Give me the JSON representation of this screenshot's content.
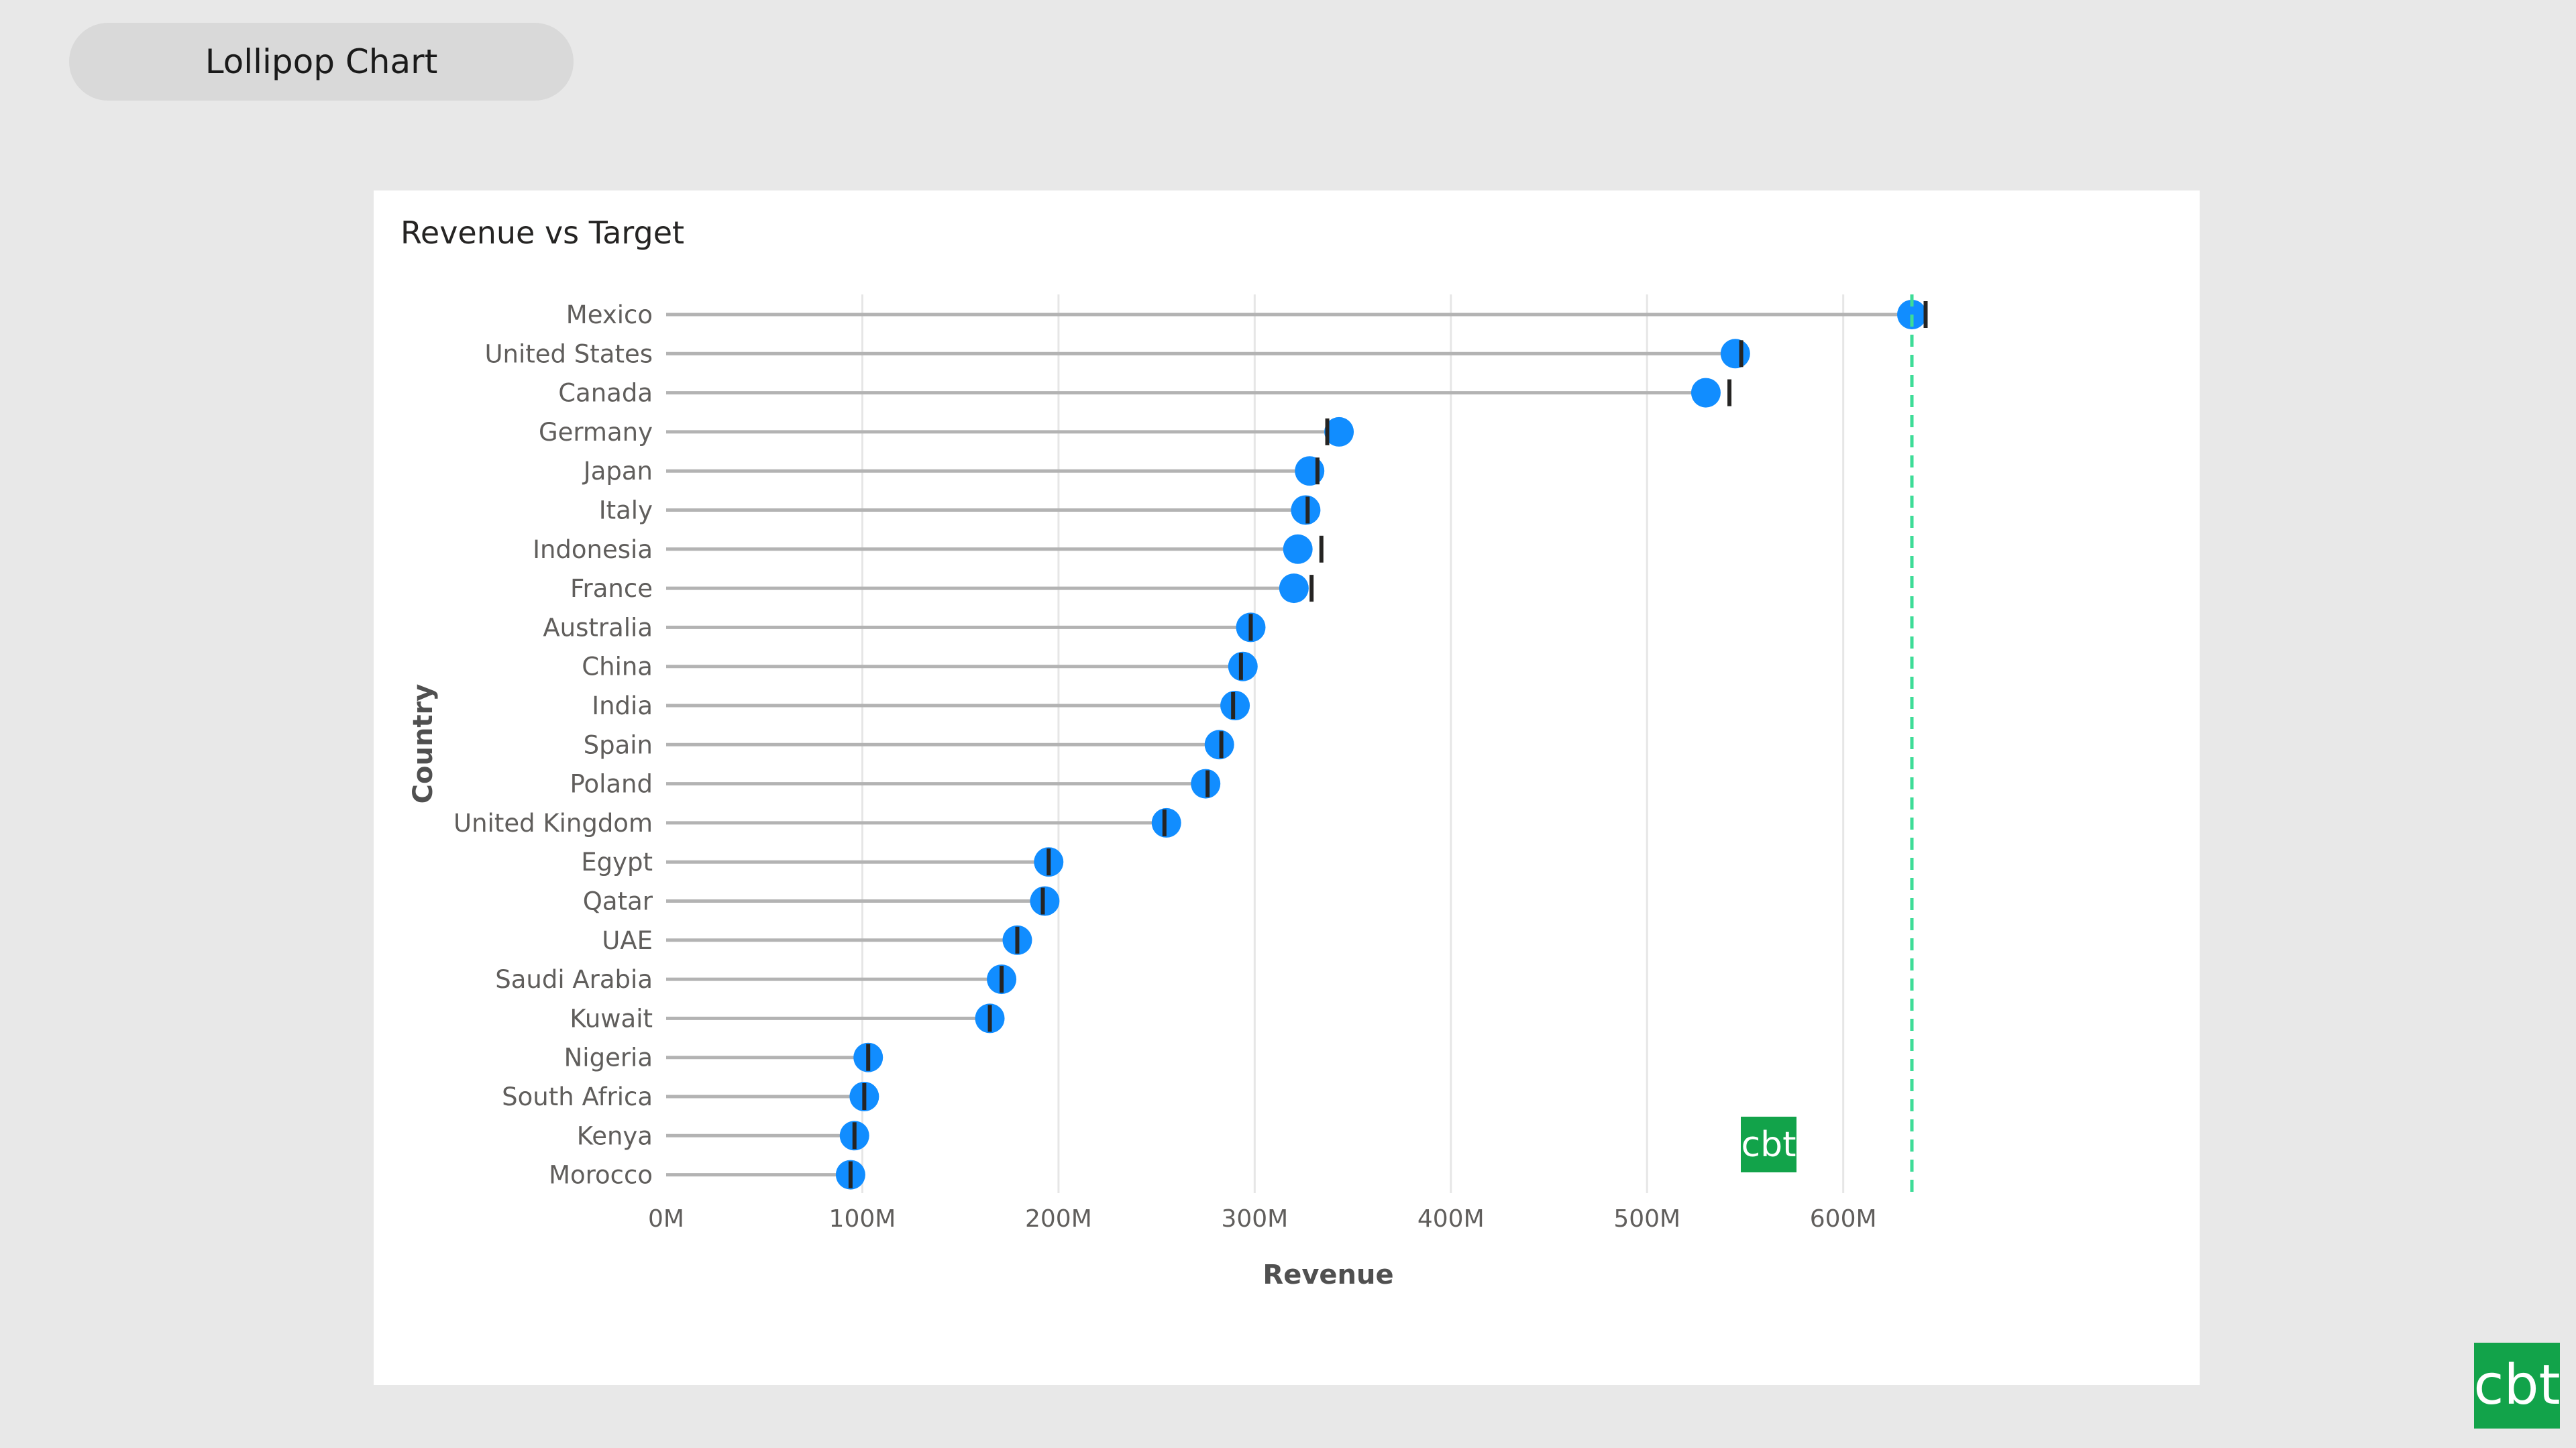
{
  "page": {
    "tab_label": "Lollipop Chart",
    "logo_text": "cbt"
  },
  "visual": {
    "title": "Revenue vs Target"
  },
  "colors": {
    "dot": "#118dff",
    "stem": "#b3b3b3",
    "target_marker": "#252423",
    "reference_line": "#3ddc97",
    "gridline": "#e6e6e6",
    "logo_bg": "#12a34a"
  },
  "chart_data": {
    "type": "lollipop",
    "title": "Revenue vs Target",
    "xlabel": "Revenue",
    "ylabel": "Country",
    "xlim": [
      0,
      675
    ],
    "x_ticks": [
      0,
      100,
      200,
      300,
      400,
      500,
      600
    ],
    "x_tick_labels": [
      "0M",
      "100M",
      "200M",
      "300M",
      "400M",
      "500M",
      "600M"
    ],
    "grid": true,
    "reference_line": 635,
    "categories": [
      "Mexico",
      "United States",
      "Canada",
      "Germany",
      "Japan",
      "Italy",
      "Indonesia",
      "France",
      "Australia",
      "China",
      "India",
      "Spain",
      "Poland",
      "United Kingdom",
      "Egypt",
      "Qatar",
      "UAE",
      "Saudi Arabia",
      "Kuwait",
      "Nigeria",
      "South Africa",
      "Kenya",
      "Morocco"
    ],
    "series": [
      {
        "values": [
          635,
          545,
          530,
          343,
          328,
          326,
          322,
          320,
          298,
          294,
          290,
          282,
          275,
          255,
          195,
          193,
          179,
          171,
          165,
          103,
          101,
          96,
          94
        ]
      },
      {
        "marker": "target",
        "values": [
          642,
          548,
          542,
          337,
          332,
          327,
          334,
          329,
          298,
          293,
          289,
          283,
          276,
          254,
          195,
          192,
          179,
          171,
          165,
          103,
          101,
          96,
          94
        ]
      }
    ]
  }
}
